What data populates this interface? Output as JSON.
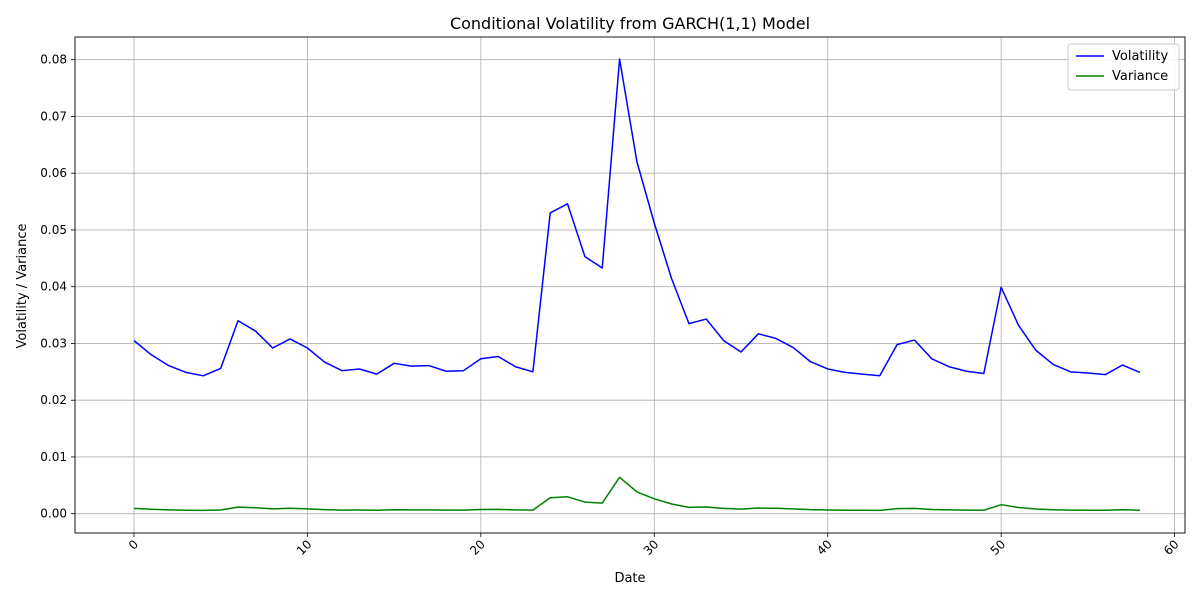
{
  "chart_data": {
    "type": "line",
    "title": "Conditional Volatility from GARCH(1,1) Model",
    "xlabel": "Date",
    "ylabel": "Volatility / Variance",
    "xlim": [
      -3.4,
      60.6
    ],
    "ylim": [
      -0.0034,
      0.084
    ],
    "xticks": [
      0,
      10,
      20,
      30,
      40,
      50,
      60
    ],
    "xtick_labels": [
      "0",
      "10",
      "20",
      "30",
      "40",
      "50",
      "60"
    ],
    "yticks": [
      0.0,
      0.01,
      0.02,
      0.03,
      0.04,
      0.05,
      0.06,
      0.07,
      0.08
    ],
    "ytick_labels": [
      "0.00",
      "0.01",
      "0.02",
      "0.03",
      "0.04",
      "0.05",
      "0.06",
      "0.07",
      "0.08"
    ],
    "grid": true,
    "legend_position": "top-right",
    "x": [
      0,
      1,
      2,
      3,
      4,
      5,
      6,
      7,
      8,
      9,
      10,
      11,
      12,
      13,
      14,
      15,
      16,
      17,
      18,
      19,
      20,
      21,
      22,
      23,
      24,
      25,
      26,
      27,
      28,
      29,
      30,
      31,
      32,
      33,
      34,
      35,
      36,
      37,
      38,
      39,
      40,
      41,
      42,
      43,
      44,
      45,
      46,
      47,
      48,
      49,
      50,
      51,
      52,
      53,
      54,
      55,
      56,
      57,
      58
    ],
    "series": [
      {
        "name": "Volatility",
        "color": "#0000ff",
        "values": [
          0.0305,
          0.028,
          0.0261,
          0.0249,
          0.0243,
          0.0256,
          0.034,
          0.0322,
          0.0292,
          0.0308,
          0.0292,
          0.0267,
          0.0252,
          0.0255,
          0.0246,
          0.0265,
          0.026,
          0.0261,
          0.0251,
          0.0252,
          0.0273,
          0.0277,
          0.0259,
          0.025,
          0.053,
          0.0546,
          0.0453,
          0.0433,
          0.0801,
          0.062,
          0.0512,
          0.0414,
          0.0335,
          0.0343,
          0.0305,
          0.0285,
          0.0317,
          0.0309,
          0.0293,
          0.0268,
          0.0255,
          0.0249,
          0.0246,
          0.0243,
          0.0298,
          0.0306,
          0.0273,
          0.0259,
          0.0251,
          0.0247,
          0.0399,
          0.0332,
          0.0288,
          0.0263,
          0.025,
          0.0248,
          0.0245,
          0.0262,
          0.0249
        ]
      },
      {
        "name": "Variance",
        "color": "#008000",
        "values": [
          0.00093,
          0.00078,
          0.00068,
          0.00062,
          0.00059,
          0.00066,
          0.00116,
          0.00104,
          0.00085,
          0.00095,
          0.00085,
          0.00071,
          0.00064,
          0.00065,
          0.00061,
          0.0007,
          0.00068,
          0.00068,
          0.00063,
          0.00064,
          0.00075,
          0.00077,
          0.00067,
          0.00063,
          0.00281,
          0.00298,
          0.00205,
          0.00187,
          0.00642,
          0.00384,
          0.00262,
          0.00171,
          0.00112,
          0.00118,
          0.00093,
          0.00081,
          0.001,
          0.00095,
          0.00086,
          0.00072,
          0.00065,
          0.00062,
          0.00061,
          0.00059,
          0.00089,
          0.00094,
          0.00075,
          0.00067,
          0.00063,
          0.00061,
          0.00159,
          0.0011,
          0.00083,
          0.00069,
          0.00063,
          0.00062,
          0.0006,
          0.00069,
          0.00062
        ]
      }
    ]
  }
}
